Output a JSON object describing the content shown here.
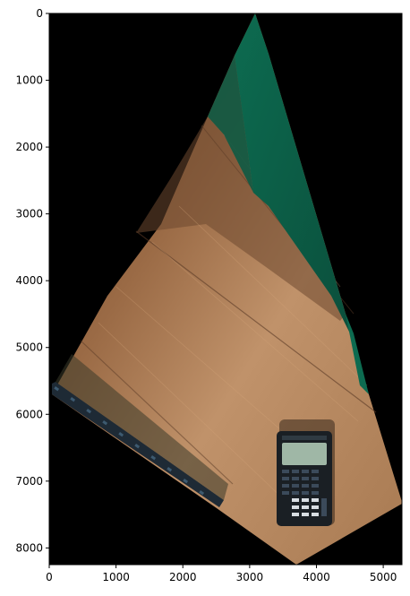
{
  "figure": {
    "x_ticks": [
      "0",
      "1000",
      "2000",
      "3000",
      "4000",
      "5000"
    ],
    "y_ticks": [
      "0",
      "1000",
      "2000",
      "3000",
      "4000",
      "5000",
      "6000",
      "7000",
      "8000"
    ],
    "xlim": [
      0,
      5280
    ],
    "ylim": [
      8250,
      0
    ],
    "colors": {
      "background": "#000000",
      "wood_light": "#b88a5e",
      "wood_dark": "#7a5236",
      "teal_wall": "#0c5a45",
      "keyboard": "#1e2a35",
      "calculator_body": "#1a1f24",
      "calculator_screen": "#9fb7a6"
    }
  }
}
